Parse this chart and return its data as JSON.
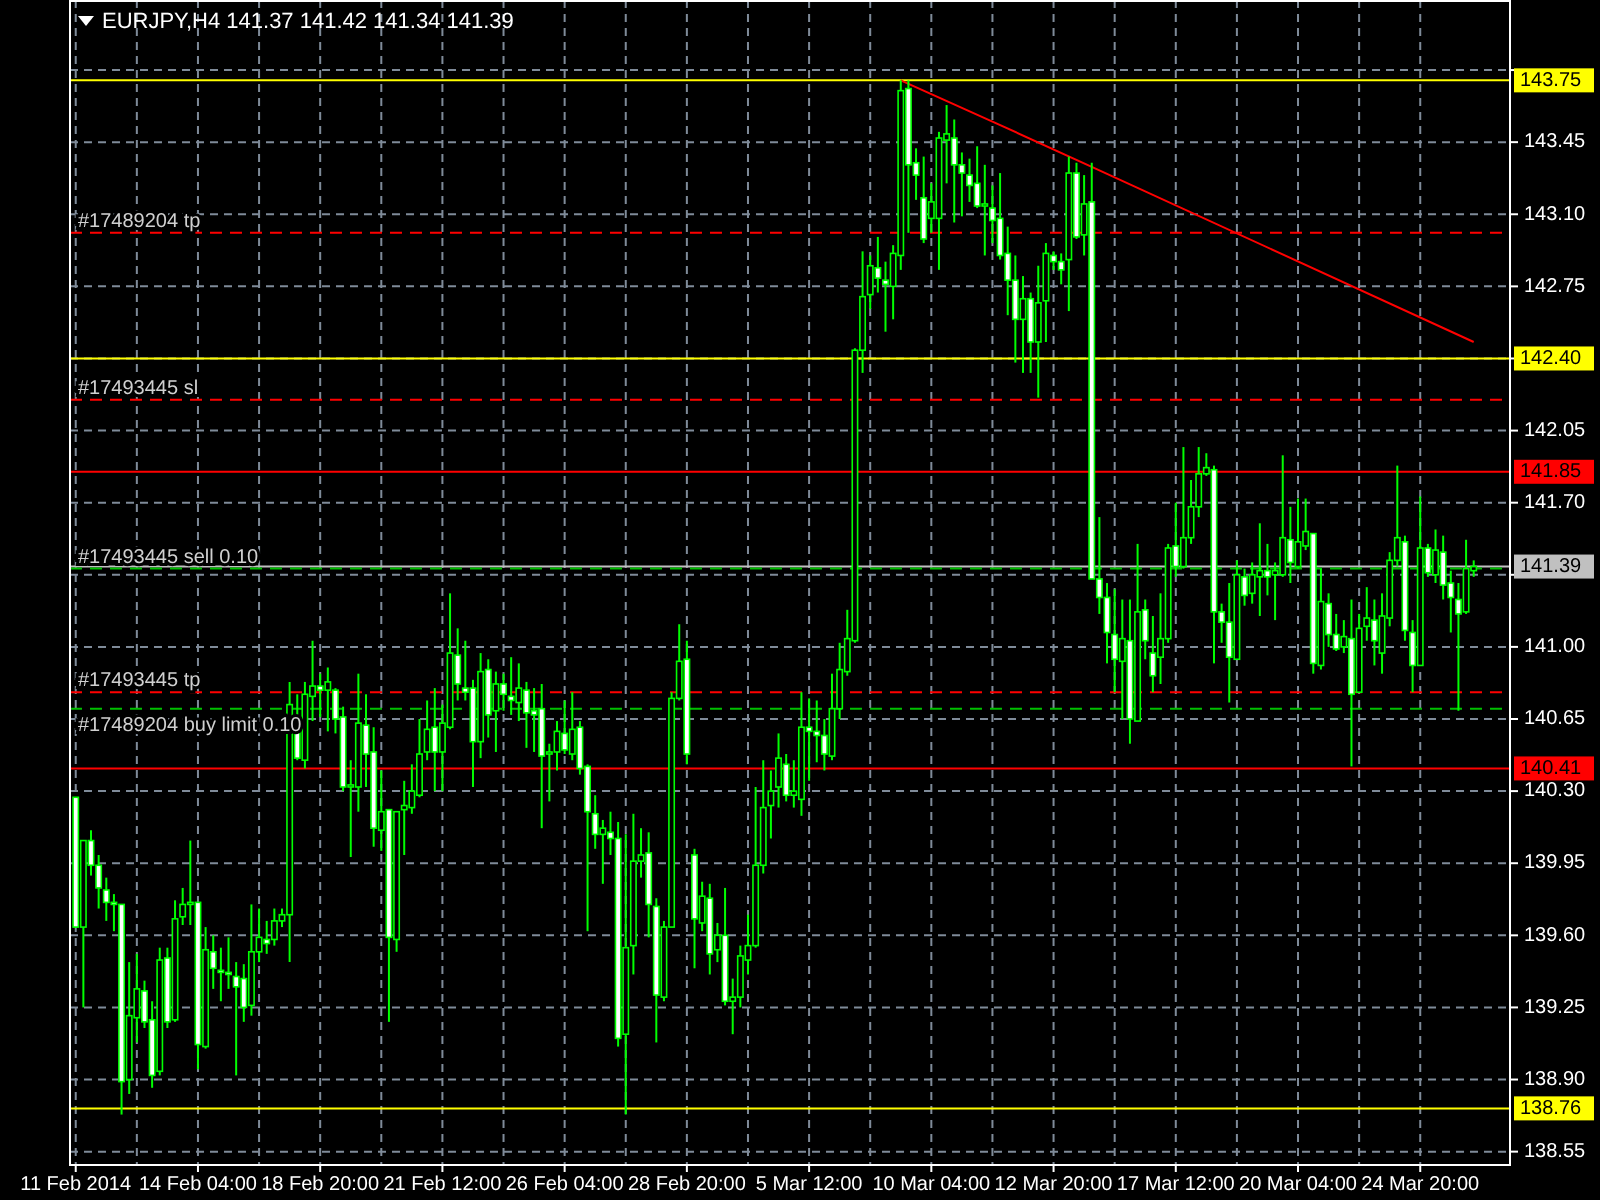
{
  "chart_data": {
    "type": "candlestick",
    "title": "EURJPY,H4  141.37 141.42 141.34 141.39",
    "color": "#00ff00",
    "grid": true,
    "ylim": [
      138.49,
      144.14
    ],
    "yticks": [
      138.55,
      {
        "value": 138.9,
        "label": "138.90"
      },
      139.25,
      {
        "value": 139.6,
        "label": "139.60"
      },
      139.95,
      {
        "value": 140.3,
        "label": "140.30"
      },
      140.65,
      {
        "value": 141,
        "label": "141.00"
      },
      {
        "value": 141.35,
        "label": null
      },
      {
        "value": 141.7,
        "label": "141.70"
      },
      142.05,
      {
        "value": 142.4,
        "label": null
      },
      142.75,
      {
        "value": 143.1,
        "label": "143.10"
      },
      143.45,
      {
        "value": 143.8,
        "label": null
      }
    ],
    "categories": [
      "11 Feb 2014",
      null,
      null,
      null,
      null,
      null,
      null,
      null,
      null,
      null,
      null,
      null,
      null,
      null,
      null,
      null,
      "14 Feb 04:00",
      null,
      null,
      null,
      null,
      null,
      null,
      null,
      null,
      null,
      null,
      null,
      null,
      null,
      null,
      null,
      "18 Feb 20:00",
      null,
      null,
      null,
      null,
      null,
      null,
      null,
      null,
      null,
      null,
      null,
      null,
      null,
      null,
      null,
      "21 Feb 12:00",
      null,
      null,
      null,
      null,
      null,
      null,
      null,
      null,
      null,
      null,
      null,
      null,
      null,
      null,
      null,
      "26 Feb 04:00",
      null,
      null,
      null,
      null,
      null,
      null,
      null,
      null,
      null,
      null,
      null,
      null,
      null,
      null,
      null,
      "28 Feb 20:00",
      null,
      null,
      null,
      null,
      null,
      null,
      null,
      null,
      null,
      null,
      null,
      null,
      null,
      null,
      null,
      "5 Mar 12:00",
      null,
      null,
      null,
      null,
      null,
      null,
      null,
      null,
      null,
      null,
      null,
      null,
      null,
      null,
      null,
      "10 Mar 04:00",
      null,
      null,
      null,
      null,
      null,
      null,
      null,
      null,
      null,
      null,
      null,
      null,
      null,
      null,
      null,
      "12 Mar 20:00",
      null,
      null,
      null,
      null,
      null,
      null,
      null,
      null,
      null,
      null,
      null,
      null,
      null,
      null,
      null,
      "17 Mar 12:00",
      null,
      null,
      null,
      null,
      null,
      null,
      null,
      null,
      null,
      null,
      null,
      null,
      null,
      null,
      null,
      "20 Mar 04:00",
      null,
      null,
      null,
      null,
      null,
      null,
      null,
      null,
      null,
      null,
      null,
      null,
      null,
      null,
      null,
      "24 Mar 20:00",
      null,
      null,
      null,
      null,
      null,
      null,
      null
    ],
    "ohlc": [
      [
        140.27,
        140.27,
        139.64,
        139.64
      ],
      [
        139.64,
        140.06,
        139.25,
        140.06
      ],
      [
        140.06,
        140.11,
        139.89,
        139.94
      ],
      [
        139.94,
        139.99,
        139.73,
        139.83
      ],
      [
        139.82,
        139.88,
        139.67,
        139.76
      ],
      [
        139.76,
        139.8,
        139.62,
        139.75
      ],
      [
        139.75,
        139.75,
        138.73,
        138.89
      ],
      [
        138.9,
        139.47,
        138.83,
        139.21
      ],
      [
        139.2,
        139.51,
        139.08,
        139.34
      ],
      [
        139.33,
        139.38,
        139.15,
        139.18
      ],
      [
        139.19,
        139.28,
        138.86,
        138.92
      ],
      [
        138.94,
        139.54,
        138.92,
        139.48
      ],
      [
        139.49,
        139.54,
        139.15,
        139.18
      ],
      [
        139.19,
        139.77,
        139.18,
        139.68
      ],
      [
        139.69,
        139.83,
        139.65,
        139.75
      ],
      [
        139.75,
        140.06,
        139.65,
        139.76
      ],
      [
        139.76,
        139.76,
        138.95,
        139.07
      ],
      [
        139.06,
        139.64,
        139.05,
        139.53
      ],
      [
        139.52,
        139.6,
        139.34,
        139.44
      ],
      [
        139.43,
        139.54,
        139.28,
        139.42
      ],
      [
        139.42,
        139.59,
        139.34,
        139.41
      ],
      [
        139.4,
        139.47,
        138.92,
        139.35
      ],
      [
        139.39,
        139.46,
        139.18,
        139.25
      ],
      [
        139.26,
        139.75,
        139.21,
        139.52
      ],
      [
        139.52,
        139.73,
        139.47,
        139.59
      ],
      [
        139.58,
        139.67,
        139.51,
        139.56
      ],
      [
        139.58,
        139.73,
        139.55,
        139.67
      ],
      [
        139.67,
        139.73,
        139.64,
        139.7
      ],
      [
        139.7,
        140.83,
        139.47,
        140.72
      ],
      [
        140.64,
        140.77,
        140.45,
        140.46
      ],
      [
        140.45,
        140.83,
        140.41,
        140.77
      ],
      [
        140.76,
        141.03,
        140.64,
        140.81
      ],
      [
        140.81,
        140.87,
        140.66,
        140.79
      ],
      [
        140.79,
        140.9,
        140.59,
        140.83
      ],
      [
        140.79,
        140.8,
        140.58,
        140.65
      ],
      [
        140.66,
        140.71,
        140.3,
        140.32
      ],
      [
        140.32,
        140.45,
        139.98,
        140.33
      ],
      [
        140.32,
        140.87,
        140.2,
        140.63
      ],
      [
        140.62,
        140.77,
        140.32,
        140.48
      ],
      [
        140.49,
        140.61,
        140.03,
        140.12
      ],
      [
        140.11,
        140.4,
        140.01,
        140.2
      ],
      [
        140.21,
        140.21,
        139.18,
        139.59
      ],
      [
        139.58,
        140.2,
        139.52,
        140.2
      ],
      [
        140.21,
        140.35,
        139.99,
        140.23
      ],
      [
        140.22,
        140.43,
        140.19,
        140.3
      ],
      [
        140.28,
        140.65,
        140.27,
        140.48
      ],
      [
        140.49,
        140.74,
        140.45,
        140.6
      ],
      [
        140.61,
        140.8,
        140.3,
        140.49
      ],
      [
        140.49,
        140.72,
        140.3,
        140.63
      ],
      [
        140.61,
        141.26,
        140.6,
        140.97
      ],
      [
        140.96,
        141.09,
        140.74,
        140.82
      ],
      [
        140.8,
        141.03,
        140.74,
        140.78
      ],
      [
        140.8,
        140.84,
        140.32,
        140.54
      ],
      [
        140.54,
        140.97,
        140.46,
        140.88
      ],
      [
        140.89,
        140.94,
        140.56,
        140.67
      ],
      [
        140.69,
        140.88,
        140.49,
        140.82
      ],
      [
        140.82,
        140.87,
        140.69,
        140.77
      ],
      [
        140.76,
        140.95,
        140.67,
        140.74
      ],
      [
        140.73,
        140.92,
        140.64,
        140.8
      ],
      [
        140.79,
        140.83,
        140.51,
        140.68
      ],
      [
        140.69,
        140.8,
        140.49,
        140.67
      ],
      [
        140.7,
        140.82,
        140.12,
        140.47
      ],
      [
        140.48,
        140.53,
        140.25,
        140.49
      ],
      [
        140.49,
        140.64,
        140.4,
        140.59
      ],
      [
        140.58,
        140.74,
        140.48,
        140.5
      ],
      [
        140.48,
        140.78,
        140.45,
        140.6
      ],
      [
        140.61,
        140.64,
        140.38,
        140.41
      ],
      [
        140.42,
        140.43,
        139.62,
        140.2
      ],
      [
        140.19,
        140.28,
        140.02,
        140.09
      ],
      [
        140.09,
        140.16,
        139.85,
        140.12
      ],
      [
        140.1,
        140.2,
        139.99,
        140.07
      ],
      [
        140.07,
        140.15,
        139.06,
        139.1
      ],
      [
        139.12,
        140.09,
        138.73,
        139.54
      ],
      [
        139.55,
        140.19,
        139.41,
        139.96
      ],
      [
        139.96,
        140.12,
        139.88,
        139.99
      ],
      [
        140,
        140.1,
        139.59,
        139.75
      ],
      [
        139.74,
        139.78,
        139.08,
        139.31
      ],
      [
        139.3,
        139.67,
        139.28,
        139.64
      ],
      [
        139.64,
        140.78,
        139.64,
        140.75
      ],
      [
        140.75,
        141.11,
        140.74,
        140.93
      ],
      [
        140.94,
        141.03,
        140.43,
        140.48
      ],
      [
        139.99,
        140.02,
        139.44,
        139.68
      ],
      [
        139.66,
        139.86,
        139.62,
        139.79
      ],
      [
        139.78,
        139.85,
        139.41,
        139.51
      ],
      [
        139.53,
        139.66,
        139.47,
        139.6
      ],
      [
        139.6,
        139.83,
        139.26,
        139.28
      ],
      [
        139.28,
        139.39,
        139.12,
        139.3
      ],
      [
        139.3,
        139.55,
        139.25,
        139.5
      ],
      [
        139.48,
        139.7,
        139.41,
        139.55
      ],
      [
        139.55,
        140.32,
        139.54,
        139.94
      ],
      [
        139.94,
        140.45,
        139.9,
        140.22
      ],
      [
        140.23,
        140.4,
        140.07,
        140.3
      ],
      [
        140.32,
        140.58,
        140.22,
        140.46
      ],
      [
        140.43,
        140.48,
        140.25,
        140.28
      ],
      [
        140.28,
        140.45,
        140.22,
        140.3
      ],
      [
        140.26,
        140.78,
        140.18,
        140.61
      ],
      [
        140.61,
        140.75,
        140.35,
        140.59
      ],
      [
        140.59,
        140.74,
        140.44,
        140.57
      ],
      [
        140.57,
        140.65,
        140.4,
        140.48
      ],
      [
        140.47,
        140.87,
        140.45,
        140.7
      ],
      [
        140.7,
        141.02,
        140.65,
        140.89
      ],
      [
        140.88,
        141.18,
        140.86,
        141.04
      ],
      [
        141.03,
        142.45,
        141.02,
        142.44
      ],
      [
        142.44,
        142.92,
        142.33,
        142.7
      ],
      [
        142.71,
        142.9,
        142.64,
        142.85
      ],
      [
        142.84,
        142.99,
        142.72,
        142.79
      ],
      [
        142.78,
        142.87,
        142.53,
        142.76
      ],
      [
        142.75,
        142.95,
        142.59,
        142.91
      ],
      [
        142.9,
        143.75,
        142.83,
        143.7
      ],
      [
        143.71,
        143.75,
        143.01,
        143.34
      ],
      [
        143.35,
        143.42,
        143.17,
        143.29
      ],
      [
        143.18,
        143.38,
        142.96,
        142.98
      ],
      [
        143.08,
        143.25,
        143.01,
        143.16
      ],
      [
        143.08,
        143.5,
        142.83,
        143.47
      ],
      [
        143.46,
        143.63,
        143.25,
        143.49
      ],
      [
        143.47,
        143.56,
        143.06,
        143.34
      ],
      [
        143.34,
        143.4,
        143.09,
        143.3
      ],
      [
        143.29,
        143.37,
        143.16,
        143.24
      ],
      [
        143.25,
        143.43,
        143.13,
        143.14
      ],
      [
        143.14,
        143.34,
        142.9,
        143.15
      ],
      [
        143.13,
        143.24,
        142.96,
        143.07
      ],
      [
        143.08,
        143.3,
        142.88,
        142.9
      ],
      [
        142.91,
        143.04,
        142.61,
        142.78
      ],
      [
        142.78,
        142.9,
        142.38,
        142.59
      ],
      [
        142.59,
        142.8,
        142.33,
        142.69
      ],
      [
        142.69,
        142.72,
        142.33,
        142.48
      ],
      [
        142.48,
        142.85,
        142.21,
        142.67
      ],
      [
        142.68,
        142.96,
        142.48,
        142.91
      ],
      [
        142.9,
        142.92,
        142.83,
        142.87
      ],
      [
        142.87,
        142.91,
        142.76,
        142.83
      ],
      [
        142.88,
        143.38,
        142.63,
        143.3
      ],
      [
        143.3,
        143.35,
        142.98,
        142.99
      ],
      [
        143,
        143.29,
        142.9,
        143.15
      ],
      [
        143.16,
        143.35,
        141.33,
        141.33
      ],
      [
        141.33,
        141.63,
        141.16,
        141.24
      ],
      [
        141.24,
        141.31,
        140.92,
        141.07
      ],
      [
        141.06,
        141.28,
        140.78,
        140.94
      ],
      [
        140.93,
        141.23,
        140.65,
        141.04
      ],
      [
        141.03,
        141.23,
        140.53,
        140.65
      ],
      [
        140.64,
        141.5,
        140.64,
        141.17
      ],
      [
        141.18,
        141.23,
        140.94,
        141.03
      ],
      [
        140.97,
        141.15,
        140.78,
        140.86
      ],
      [
        140.95,
        141.26,
        140.82,
        141.04
      ],
      [
        141.04,
        141.5,
        141.02,
        141.48
      ],
      [
        141.49,
        141.7,
        141.34,
        141.39
      ],
      [
        141.39,
        141.97,
        141.38,
        141.53
      ],
      [
        141.53,
        141.81,
        141.5,
        141.68
      ],
      [
        141.68,
        141.97,
        141.63,
        141.84
      ],
      [
        141.84,
        141.94,
        141.83,
        141.87
      ],
      [
        141.86,
        141.88,
        140.92,
        141.17
      ],
      [
        141.17,
        141.21,
        141.02,
        141.12
      ],
      [
        141.12,
        141.31,
        140.73,
        140.95
      ],
      [
        140.94,
        141.42,
        140.94,
        141.35
      ],
      [
        141.34,
        141.38,
        141.2,
        141.25
      ],
      [
        141.26,
        141.41,
        141.21,
        141.35
      ],
      [
        141.34,
        141.6,
        141.15,
        141.37
      ],
      [
        141.37,
        141.5,
        141.25,
        141.34
      ],
      [
        141.35,
        141.41,
        141.13,
        141.37
      ],
      [
        141.35,
        141.93,
        141.34,
        141.53
      ],
      [
        141.52,
        141.68,
        141.31,
        141.41
      ],
      [
        141.39,
        141.72,
        141.38,
        141.51
      ],
      [
        141.49,
        141.72,
        141.47,
        141.56
      ],
      [
        141.55,
        141.55,
        140.87,
        140.92
      ],
      [
        140.91,
        141.38,
        140.89,
        141.22
      ],
      [
        141.21,
        141.26,
        141,
        141.06
      ],
      [
        141.06,
        141.16,
        140.98,
        140.99
      ],
      [
        141,
        141.13,
        140.97,
        141.05
      ],
      [
        141.04,
        141.23,
        140.42,
        140.77
      ],
      [
        140.78,
        141.16,
        140.78,
        141.09
      ],
      [
        141.1,
        141.29,
        141.03,
        141.14
      ],
      [
        141.13,
        141.23,
        140.91,
        141.03
      ],
      [
        140.97,
        141.26,
        140.87,
        141.15
      ],
      [
        141.14,
        141.46,
        141.1,
        141.42
      ],
      [
        141.42,
        141.88,
        141.39,
        141.53
      ],
      [
        141.51,
        141.54,
        141.03,
        141.08
      ],
      [
        141.07,
        141.13,
        140.78,
        140.91
      ],
      [
        140.91,
        141.73,
        140.91,
        141.48
      ],
      [
        141.48,
        141.5,
        141.34,
        141.36
      ],
      [
        141.35,
        141.57,
        141.31,
        141.47
      ],
      [
        141.46,
        141.54,
        141.23,
        141.3
      ],
      [
        141.31,
        141.37,
        141.07,
        141.24
      ],
      [
        141.23,
        141.31,
        140.69,
        141.16
      ],
      [
        141.17,
        141.52,
        141.16,
        141.38
      ],
      [
        141.37,
        141.42,
        141.34,
        141.39
      ]
    ],
    "series": [
      {
        "type": "line",
        "color": "#ff0000",
        "values": [
          null,
          null,
          null,
          null,
          null,
          null,
          null,
          null,
          null,
          null,
          null,
          null,
          null,
          null,
          null,
          null,
          null,
          null,
          null,
          null,
          null,
          null,
          null,
          null,
          null,
          null,
          null,
          null,
          null,
          null,
          null,
          null,
          null,
          null,
          null,
          null,
          null,
          null,
          null,
          null,
          null,
          null,
          null,
          null,
          null,
          null,
          null,
          null,
          null,
          null,
          null,
          null,
          null,
          null,
          null,
          null,
          null,
          null,
          null,
          null,
          null,
          null,
          null,
          null,
          null,
          null,
          null,
          null,
          null,
          null,
          null,
          null,
          null,
          null,
          null,
          null,
          null,
          null,
          null,
          null,
          null,
          null,
          null,
          null,
          null,
          null,
          null,
          null,
          null,
          null,
          null,
          null,
          null,
          null,
          null,
          null,
          null,
          null,
          null,
          null,
          null,
          null,
          null,
          null,
          null,
          null,
          null,
          null,
          143.75,
          null,
          null,
          null,
          null,
          null,
          null,
          null,
          null,
          null,
          null,
          null,
          143.55,
          null,
          null,
          null,
          null,
          null,
          null,
          null,
          null,
          null,
          null,
          null,
          null,
          143.33,
          null,
          null,
          null,
          null,
          null,
          null,
          null,
          null,
          null,
          null,
          null,
          null,
          null,
          null,
          null,
          null,
          null,
          null,
          null,
          null,
          null,
          null,
          null,
          null,
          null,
          null,
          null,
          null,
          null,
          null,
          null,
          null,
          null,
          null,
          null,
          null,
          null,
          null,
          null,
          null,
          null,
          null,
          null,
          null,
          null,
          null,
          null,
          null,
          null,
          142.48
        ]
      }
    ],
    "ref_lines": [
      {
        "axis": "y",
        "value": 143.75,
        "label": "143.75",
        "color": "#ffff00",
        "line_style": "solid"
      },
      {
        "axis": "y",
        "value": 143.01,
        "label": "#17489204 tp",
        "color": "#ff0000",
        "line_style": "dashed"
      },
      {
        "axis": "y",
        "value": 142.4,
        "label": "142.40",
        "color": "#ffff00",
        "line_style": "solid"
      },
      {
        "axis": "y",
        "value": 142.2,
        "label": "#17493445 sl",
        "color": "#ff0000",
        "line_style": "dashed"
      },
      {
        "axis": "y",
        "value": 141.85,
        "label": "141.85",
        "color": "#ff0000",
        "line_style": "solid"
      },
      {
        "axis": "y",
        "value": 141.39,
        "label": "141.39",
        "color": "#c0c0c0",
        "line_style": "solid"
      },
      {
        "axis": "y",
        "value": 141.38,
        "label": "#17493445 sell 0.10",
        "color": "#00c000",
        "line_style": "dashed"
      },
      {
        "axis": "y",
        "value": 140.78,
        "label": "#17493445 tp",
        "color": "#ff0000",
        "line_style": "dashed"
      },
      {
        "axis": "y",
        "value": 140.7,
        "label": "#17489204 buy limit 0.10",
        "color": "#00c000",
        "line_style": "dashed"
      },
      {
        "axis": "y",
        "value": 140.41,
        "label": "140.41",
        "color": "#ff0000",
        "line_style": "solid"
      },
      {
        "axis": "y",
        "value": 138.76,
        "label": "138.76",
        "color": "#ffff00",
        "line_style": "solid"
      }
    ]
  }
}
